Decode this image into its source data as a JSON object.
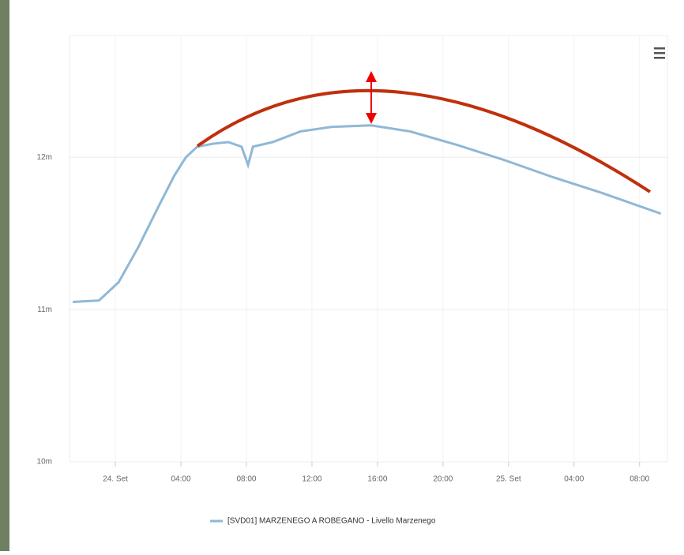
{
  "chart_data": {
    "type": "line",
    "x": [
      -2.6,
      -1.0,
      0.2,
      1.4,
      2.6,
      3.6,
      4.3,
      5.0,
      6.0,
      6.9,
      7.7,
      8.1,
      8.4,
      9.6,
      11.3,
      13.2,
      15.6,
      18.0,
      20.9,
      23.8,
      26.7,
      29.6,
      33.3
    ],
    "series": [
      {
        "name": "[SVD01] MARZENEGO A ROBEGANO - Livello Marzenego",
        "color": "#8fb8d6",
        "values": [
          11.05,
          11.06,
          11.18,
          11.41,
          11.67,
          11.88,
          12.0,
          12.07,
          12.09,
          12.1,
          12.07,
          11.95,
          12.07,
          12.1,
          12.17,
          12.2,
          12.21,
          12.17,
          12.08,
          11.98,
          11.87,
          11.77,
          11.63
        ]
      }
    ],
    "xlim": [
      -2.8,
      33.7
    ],
    "xticks": [
      {
        "value": 0,
        "label": "24. Set"
      },
      {
        "value": 4,
        "label": "04:00"
      },
      {
        "value": 8,
        "label": "08:00"
      },
      {
        "value": 12,
        "label": "12:00"
      },
      {
        "value": 16,
        "label": "16:00"
      },
      {
        "value": 20,
        "label": "20:00"
      },
      {
        "value": 24,
        "label": "25. Set"
      },
      {
        "value": 28,
        "label": "04:00"
      },
      {
        "value": 32,
        "label": "08:00"
      }
    ],
    "ylim": [
      10,
      12.8
    ],
    "yticks": [
      {
        "value": 10,
        "label": "10m"
      },
      {
        "value": 11,
        "label": "11m"
      },
      {
        "value": 12,
        "label": "12m"
      }
    ],
    "grid": true
  }
}
